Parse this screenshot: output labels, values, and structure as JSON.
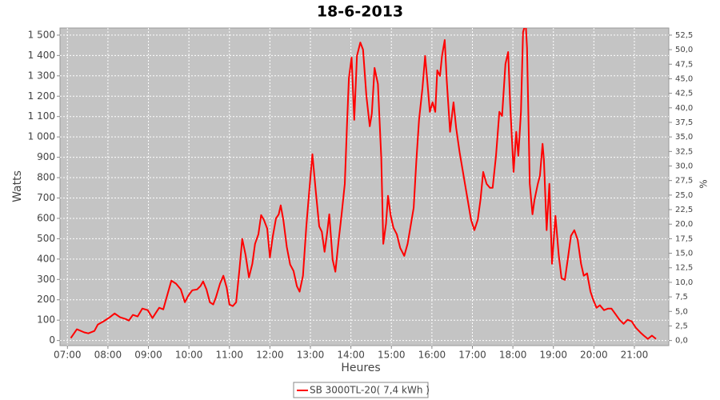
{
  "chart_data": {
    "type": "line",
    "title": "18-6-2013",
    "x_label": "Heures",
    "y_label": "Watts",
    "y2_label": "%",
    "xlim": [
      "06:49",
      "21:51"
    ],
    "xticks": [
      "07:00",
      "08:00",
      "09:00",
      "10:00",
      "11:00",
      "12:00",
      "13:00",
      "14:00",
      "15:00",
      "16:00",
      "17:00",
      "18:00",
      "19:00",
      "20:00",
      "21:00"
    ],
    "ylim": [
      -25,
      1535
    ],
    "yticks": [
      0,
      100,
      200,
      300,
      400,
      500,
      600,
      700,
      800,
      900,
      {
        "value": 1000,
        "label": "1 000"
      },
      {
        "value": 1100,
        "label": "1 100"
      },
      {
        "value": 1200,
        "label": "1 200"
      },
      {
        "value": 1300,
        "label": "1 300"
      },
      {
        "value": 1400,
        "label": "1 400"
      },
      {
        "value": 1500,
        "label": "1 500"
      }
    ],
    "y2lim": [
      -0.875,
      53.725
    ],
    "y2ticks": [
      {
        "value": 0,
        "label": "0,0"
      },
      {
        "value": 2.5,
        "label": "2,5"
      },
      {
        "value": 5,
        "label": "5,0"
      },
      {
        "value": 7.5,
        "label": "7,5"
      },
      {
        "value": 10,
        "label": "10,0"
      },
      {
        "value": 12.5,
        "label": "12,5"
      },
      {
        "value": 15,
        "label": "15,0"
      },
      {
        "value": 17.5,
        "label": "17,5"
      },
      {
        "value": 20,
        "label": "20,0"
      },
      {
        "value": 22.5,
        "label": "22,5"
      },
      {
        "value": 25,
        "label": "25,0"
      },
      {
        "value": 27.5,
        "label": "27,5"
      },
      {
        "value": 30,
        "label": "30,0"
      },
      {
        "value": 32.5,
        "label": "32,5"
      },
      {
        "value": 35,
        "label": "35,0"
      },
      {
        "value": 37.5,
        "label": "37,5"
      },
      {
        "value": 40,
        "label": "40,0"
      },
      {
        "value": 42.5,
        "label": "42,5"
      },
      {
        "value": 45,
        "label": "45,0"
      },
      {
        "value": 47.5,
        "label": "47,5"
      },
      {
        "value": 50,
        "label": "50,0"
      },
      {
        "value": 52.5,
        "label": "52,5"
      }
    ],
    "grid": true,
    "background": "#c4c4c4",
    "legend": "bottom",
    "x": [
      "07:05",
      "07:14",
      "07:25",
      "07:31",
      "07:40",
      "07:45",
      "07:54",
      "08:03",
      "08:10",
      "08:18",
      "08:26",
      "08:31",
      "08:37",
      "08:44",
      "08:51",
      "08:59",
      "09:06",
      "09:12",
      "09:16",
      "09:22",
      "09:27",
      "09:34",
      "09:41",
      "09:48",
      "09:54",
      "09:59",
      "10:05",
      "10:12",
      "10:17",
      "10:21",
      "10:26",
      "10:31",
      "10:36",
      "10:40",
      "10:46",
      "10:51",
      "10:56",
      "11:00",
      "11:05",
      "11:10",
      "11:15",
      "11:19",
      "11:24",
      "11:29",
      "11:34",
      "11:38",
      "11:43",
      "11:47",
      "11:51",
      "11:56",
      "12:00",
      "12:04",
      "12:09",
      "12:13",
      "12:16",
      "12:20",
      "12:25",
      "12:30",
      "12:35",
      "12:40",
      "12:44",
      "12:49",
      "12:54",
      "12:58",
      "13:03",
      "13:08",
      "13:13",
      "13:17",
      "13:21",
      "13:25",
      "13:28",
      "13:33",
      "13:37",
      "13:42",
      "13:46",
      "13:51",
      "13:54",
      "13:57",
      "14:01",
      "14:05",
      "14:09",
      "14:14",
      "14:18",
      "14:23",
      "14:28",
      "14:31",
      "14:35",
      "14:40",
      "14:45",
      "14:48",
      "14:52",
      "14:55",
      "14:59",
      "15:03",
      "15:08",
      "15:13",
      "15:19",
      "15:24",
      "15:28",
      "15:33",
      "15:37",
      "15:41",
      "15:46",
      "15:50",
      "15:53",
      "15:57",
      "16:01",
      "16:05",
      "16:08",
      "16:12",
      "16:15",
      "16:19",
      "16:22",
      "16:27",
      "16:32",
      "16:36",
      "16:41",
      "16:47",
      "16:53",
      "16:58",
      "17:03",
      "17:08",
      "17:12",
      "17:16",
      "17:21",
      "17:26",
      "17:30",
      "17:35",
      "17:40",
      "17:44",
      "17:49",
      "17:53",
      "17:56",
      "18:01",
      "18:05",
      "18:08",
      "18:12",
      "18:15",
      "18:19",
      "18:21",
      "18:25",
      "18:29",
      "18:32",
      "18:37",
      "18:40",
      "18:44",
      "18:46",
      "18:50",
      "18:54",
      "18:58",
      "19:03",
      "19:08",
      "19:12",
      "19:17",
      "19:22",
      "19:26",
      "19:31",
      "19:36",
      "19:41",
      "19:45",
      "19:50",
      "19:55",
      "19:59",
      "20:04",
      "20:09",
      "20:15",
      "20:21",
      "20:26",
      "20:32",
      "20:38",
      "20:44",
      "20:50",
      "20:56",
      "21:02",
      "21:09",
      "21:14",
      "21:20",
      "21:26",
      "21:32"
    ],
    "series": [
      {
        "name": "SB 3000TL-20( 7,4 kWh )",
        "color": "#ff0000",
        "values": [
          12,
          55,
          40,
          35,
          47,
          78,
          95,
          115,
          133,
          114,
          106,
          98,
          126,
          118,
          157,
          149,
          110,
          141,
          161,
          153,
          212,
          294,
          279,
          251,
          188,
          220,
          247,
          251,
          267,
          290,
          251,
          188,
          177,
          212,
          279,
          318,
          259,
          177,
          169,
          188,
          353,
          499,
          420,
          310,
          377,
          475,
          522,
          616,
          593,
          550,
          408,
          507,
          600,
          620,
          664,
          589,
          459,
          373,
          342,
          267,
          240,
          318,
          561,
          722,
          915,
          730,
          561,
          534,
          436,
          534,
          620,
          397,
          338,
          495,
          612,
          770,
          1044,
          1288,
          1390,
          1084,
          1398,
          1464,
          1429,
          1201,
          1052,
          1115,
          1339,
          1260,
          895,
          475,
          573,
          711,
          612,
          554,
          522,
          455,
          416,
          475,
          554,
          652,
          887,
          1084,
          1241,
          1398,
          1280,
          1123,
          1170,
          1123,
          1327,
          1300,
          1398,
          1476,
          1280,
          1025,
          1170,
          1044,
          925,
          809,
          691,
          593,
          542,
          593,
          691,
          828,
          770,
          750,
          750,
          907,
          1123,
          1103,
          1358,
          1417,
          1162,
          828,
          1025,
          907,
          1123,
          1515,
          1560,
          1437,
          770,
          620,
          691,
          770,
          809,
          966,
          887,
          542,
          770,
          377,
          612,
          416,
          306,
          298,
          416,
          514,
          542,
          495,
          377,
          318,
          330,
          240,
          200,
          161,
          173,
          149,
          157,
          157,
          130,
          102,
          82,
          102,
          94,
          63,
          39,
          24,
          8,
          24,
          8
        ]
      }
    ]
  }
}
